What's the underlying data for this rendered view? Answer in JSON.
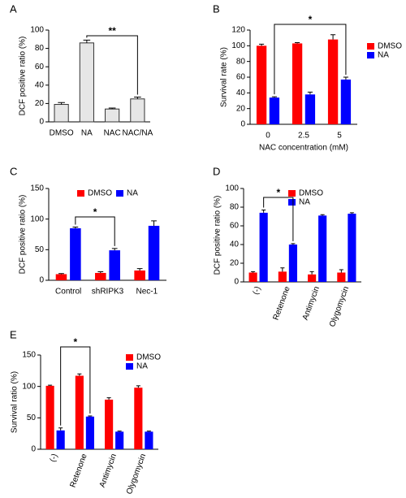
{
  "chart_data": [
    {
      "type": "bar",
      "panel_label": "A",
      "ylabel": "DCF positive ratio (%)",
      "categories": [
        "DMSO",
        "NA",
        "NAC",
        "NAC/NA"
      ],
      "values": [
        19,
        86,
        14,
        25
      ],
      "errors": [
        2,
        3,
        1,
        2
      ],
      "color": "#e6e6e6",
      "ylim": [
        0,
        100
      ],
      "yticks": [
        0,
        20,
        40,
        60,
        80,
        100
      ],
      "annotation": "**"
    },
    {
      "type": "bar",
      "panel_label": "B",
      "ylabel": "Survival rate (%)",
      "xlabel": "NAC concentration (mM)",
      "categories": [
        "0",
        "2.5",
        "5"
      ],
      "series": [
        {
          "name": "DMSO",
          "color": "#ff0000",
          "values": [
            100,
            103,
            108
          ],
          "errors": [
            2,
            1,
            6
          ]
        },
        {
          "name": "NA",
          "color": "#0000ff",
          "values": [
            34,
            38,
            57
          ],
          "errors": [
            1,
            3,
            3
          ]
        }
      ],
      "ylim": [
        0,
        120
      ],
      "yticks": [
        0,
        20,
        40,
        60,
        80,
        100,
        120
      ],
      "annotation": "*",
      "legend": "right"
    },
    {
      "type": "bar",
      "panel_label": "C",
      "ylabel": "DCF positive ratio (%)",
      "categories": [
        "Control",
        "shRIPK3",
        "Nec-1"
      ],
      "series": [
        {
          "name": "DMSO",
          "color": "#ff0000",
          "values": [
            10,
            12,
            16
          ],
          "errors": [
            1,
            2,
            3
          ]
        },
        {
          "name": "NA",
          "color": "#0000ff",
          "values": [
            85,
            49,
            89
          ],
          "errors": [
            2,
            3,
            8
          ]
        }
      ],
      "ylim": [
        0,
        150
      ],
      "yticks": [
        0,
        50,
        100,
        150
      ],
      "annotation": "*",
      "legend": "top"
    },
    {
      "type": "bar",
      "panel_label": "D",
      "ylabel": "DCF positive ratio (%)",
      "categories": [
        "(-)",
        "Retenone",
        "Antimycin",
        "Olygomycin"
      ],
      "series": [
        {
          "name": "DMSO",
          "color": "#ff0000",
          "values": [
            10,
            11,
            8,
            10
          ],
          "errors": [
            1,
            4,
            3,
            3
          ]
        },
        {
          "name": "NA",
          "color": "#0000ff",
          "values": [
            74,
            40,
            71,
            73
          ],
          "errors": [
            3,
            1,
            1,
            1
          ]
        }
      ],
      "ylim": [
        0,
        100
      ],
      "yticks": [
        0,
        20,
        40,
        60,
        80,
        100
      ],
      "annotation": "*",
      "legend": "right"
    },
    {
      "type": "bar",
      "panel_label": "E",
      "ylabel": "Survival ratio (%)",
      "categories": [
        "(-)",
        "Retenone",
        "Antimycin",
        "Olygomycin"
      ],
      "series": [
        {
          "name": "DMSO",
          "color": "#ff0000",
          "values": [
            101,
            117,
            79,
            98
          ],
          "errors": [
            1,
            3,
            3,
            3
          ]
        },
        {
          "name": "NA",
          "color": "#0000ff",
          "values": [
            30,
            52,
            28,
            28
          ],
          "errors": [
            4,
            1,
            1,
            1
          ]
        }
      ],
      "ylim": [
        0,
        150
      ],
      "yticks": [
        0,
        50,
        100,
        150
      ],
      "annotation": "*",
      "legend": "right"
    }
  ]
}
